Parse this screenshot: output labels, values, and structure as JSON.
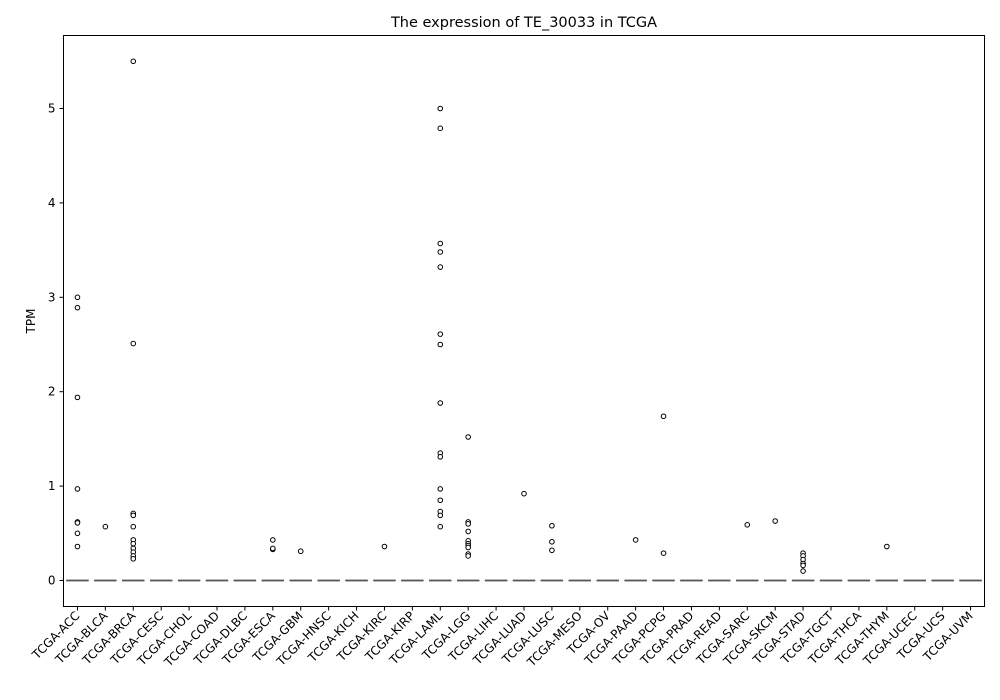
{
  "chart_data": {
    "type": "box",
    "title": "The expression of TE_30033 in TCGA",
    "xlabel": "",
    "ylabel": "TPM",
    "ylim": [
      -0.27,
      5.78
    ],
    "yticks": [
      0,
      1,
      2,
      3,
      4,
      5
    ],
    "grid": false,
    "legend": "none",
    "categories": [
      "TCGA-ACC",
      "TCGA-BLCA",
      "TCGA-BRCA",
      "TCGA-CESC",
      "TCGA-CHOL",
      "TCGA-COAD",
      "TCGA-DLBC",
      "TCGA-ESCA",
      "TCGA-GBM",
      "TCGA-HNSC",
      "TCGA-KICH",
      "TCGA-KIRC",
      "TCGA-KIRP",
      "TCGA-LAML",
      "TCGA-LGG",
      "TCGA-LIHC",
      "TCGA-LUAD",
      "TCGA-LUSC",
      "TCGA-MESO",
      "TCGA-OV",
      "TCGA-PAAD",
      "TCGA-PCPG",
      "TCGA-PRAD",
      "TCGA-READ",
      "TCGA-SARC",
      "TCGA-SKCM",
      "TCGA-STAD",
      "TCGA-TGCT",
      "TCGA-THCA",
      "TCGA-THYM",
      "TCGA-UCEC",
      "TCGA-UCS",
      "TCGA-UVM"
    ],
    "median": [
      0,
      0,
      0,
      0,
      0,
      0,
      0,
      0,
      0,
      0,
      0,
      0,
      0,
      0,
      0,
      0,
      0,
      0,
      0,
      0,
      0,
      0,
      0,
      0,
      0,
      0,
      0,
      0,
      0,
      0,
      0,
      0,
      0
    ],
    "outliers": [
      [
        3.0,
        2.89,
        1.94,
        0.97,
        0.62,
        0.61,
        0.5,
        0.36
      ],
      [
        0.57
      ],
      [
        5.5,
        2.51,
        0.71,
        0.69,
        0.57,
        0.43,
        0.39,
        0.34,
        0.3,
        0.26,
        0.23
      ],
      [],
      [],
      [],
      [],
      [
        0.43,
        0.33,
        0.34
      ],
      [
        0.31
      ],
      [],
      [],
      [
        0.36
      ],
      [],
      [
        5.0,
        4.79,
        3.57,
        3.48,
        3.32,
        2.61,
        2.5,
        1.88,
        1.35,
        1.31,
        0.97,
        0.85,
        0.73,
        0.69,
        0.57
      ],
      [
        1.52,
        0.62,
        0.6,
        0.52,
        0.42,
        0.39,
        0.37,
        0.35,
        0.28,
        0.26
      ],
      [],
      [
        0.92
      ],
      [
        0.58,
        0.41,
        0.32
      ],
      [],
      [],
      [
        0.43
      ],
      [
        1.74,
        0.29
      ],
      [],
      [],
      [
        0.59
      ],
      [
        0.63
      ],
      [
        0.29,
        0.26,
        0.22,
        0.18,
        0.16,
        0.1
      ],
      [],
      [],
      [
        0.36
      ],
      [],
      [],
      []
    ]
  }
}
